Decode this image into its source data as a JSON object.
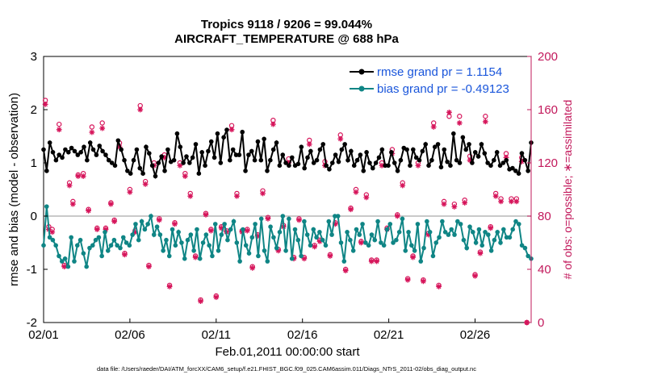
{
  "chart_data": {
    "type": "line",
    "title": "Tropics 9118 / 9206 = 99.044%",
    "subtitle": "AIRCRAFT_TEMPERATURE @ 688 hPa",
    "xlabel": "Feb.01,2011 00:00:00 start",
    "ylabel_left": "rmse and bias (model - observation)",
    "ylabel_right": "# of obs: o=possible; ∗=assimilated",
    "ylim_left": [
      -2,
      3
    ],
    "ylim_right": [
      0,
      200
    ],
    "yticks_left": [
      "-2",
      "-1",
      "0",
      "1",
      "2",
      "3"
    ],
    "yticks_right": [
      "0",
      "40",
      "80",
      "120",
      "160",
      "200"
    ],
    "xticks": [
      "02/01",
      "02/06",
      "02/11",
      "02/16",
      "02/21",
      "02/26"
    ],
    "xlim_days": [
      0,
      28.25
    ],
    "footnote": "data file: /Users/raeder/DAI/ATM_forcXX/CAM6_setup/f.e21.FHIST_BGC.f09_025.CAM6assim.011/Diags_NTrS_2011-02/obs_diag_output.nc",
    "series": [
      {
        "name": "rmse grand pr = 1.1154",
        "color": "#000000",
        "axis": "left",
        "values": [
          1.25,
          0.85,
          1.38,
          1.2,
          1.05,
          1.15,
          1.1,
          1.25,
          1.2,
          1.28,
          1.22,
          1.15,
          1.2,
          1.3,
          1.05,
          1.38,
          1.25,
          1.15,
          1.32,
          1.22,
          1.15,
          1.05,
          1.0,
          0.95,
          1.42,
          1.25,
          1.05,
          0.85,
          0.8,
          1.05,
          1.25,
          0.9,
          0.8,
          1.3,
          1.18,
          0.95,
          0.75,
          1.0,
          1.12,
          0.85,
          1.25,
          1.02,
          1.05,
          1.55,
          1.3,
          1.0,
          1.12,
          1.0,
          1.1,
          1.35,
          0.8,
          1.2,
          0.95,
          1.22,
          1.4,
          1.1,
          1.55,
          1.0,
          1.48,
          1.62,
          1.05,
          1.25,
          1.15,
          1.15,
          1.58,
          0.85,
          1.15,
          1.22,
          1.05,
          1.4,
          1.05,
          1.45,
          0.85,
          1.05,
          1.25,
          1.38,
          0.95,
          1.15,
          1.0,
          0.95,
          1.1,
          0.95,
          0.98,
          1.3,
          0.9,
          1.1,
          1.22,
          1.0,
          1.05,
          1.25,
          1.35,
          0.95,
          0.88,
          1.0,
          1.15,
          1.02,
          1.25,
          1.35,
          1.05,
          1.22,
          0.95,
          1.05,
          1.15,
          0.85,
          1.2,
          1.0,
          0.9,
          1.0,
          1.1,
          1.25,
          0.95,
          0.95,
          1.2,
          1.0,
          0.85,
          1.05,
          1.28,
          1.25,
          0.95,
          1.25,
          1.1,
          1.05,
          1.22,
          1.35,
          0.95,
          1.05,
          1.3,
          1.35,
          0.92,
          1.25,
          1.02,
          0.95,
          1.55,
          1.05,
          1.0,
          1.48,
          1.25,
          1.35,
          1.0,
          1.2,
          1.12,
          1.35,
          1.18,
          1.0,
          0.95,
          1.05,
          1.2,
          0.95,
          1.0,
          1.05,
          0.88,
          0.9,
          0.85,
          0.8,
          1.18,
          1.05,
          0.85,
          1.38
        ]
      },
      {
        "name": "bias grand pr = -0.49123",
        "color": "#0f8585",
        "axis": "left",
        "values": [
          -0.55,
          0.18,
          -0.4,
          -0.45,
          -0.55,
          -0.75,
          -0.85,
          -0.8,
          -0.95,
          -0.4,
          -0.85,
          -0.55,
          -0.45,
          -0.7,
          -0.95,
          -0.6,
          -0.55,
          -0.45,
          -0.4,
          -0.75,
          -0.3,
          -0.65,
          -0.55,
          -0.45,
          -0.55,
          -0.6,
          -0.4,
          -0.5,
          -0.55,
          -0.35,
          -0.15,
          -0.45,
          -0.1,
          -0.25,
          -0.15,
          0.0,
          -0.35,
          -0.2,
          -0.35,
          -0.65,
          -0.45,
          -0.75,
          -0.25,
          -0.55,
          -0.3,
          -0.5,
          -0.8,
          -0.45,
          -0.35,
          -0.65,
          -0.25,
          -0.8,
          -0.5,
          -0.35,
          -0.55,
          -0.75,
          -0.15,
          -0.65,
          -0.35,
          -0.15,
          -0.45,
          -0.25,
          -0.1,
          -0.5,
          -0.85,
          -0.25,
          -0.55,
          -0.7,
          -0.4,
          -0.15,
          -0.75,
          -0.05,
          -0.65,
          -0.85,
          -0.2,
          -0.4,
          -0.6,
          -0.3,
          0.0,
          -0.65,
          -0.05,
          -0.8,
          -0.25,
          -0.45,
          -0.75,
          -0.1,
          -0.35,
          -0.55,
          -0.25,
          -0.4,
          -0.3,
          -0.45,
          -0.55,
          -0.1,
          -0.35,
          0.0,
          0.0,
          -0.5,
          -0.85,
          -0.3,
          -0.45,
          -0.65,
          -0.25,
          -0.35,
          -0.15,
          -0.5,
          -0.55,
          -0.35,
          -0.45,
          -0.1,
          -0.5,
          -0.55,
          -0.25,
          -0.15,
          -0.5,
          -0.45,
          -0.3,
          -0.05,
          -0.65,
          -0.3,
          -0.55,
          -0.65,
          -0.15,
          -0.85,
          -0.6,
          -0.1,
          -0.3,
          -0.75,
          -0.5,
          -0.4,
          -0.1,
          -0.3,
          -0.35,
          -0.25,
          -0.35,
          -0.1,
          -0.15,
          -0.45,
          -0.6,
          -0.2,
          -0.3,
          -0.5,
          -0.25,
          -0.55,
          -0.3,
          -0.35,
          -0.65,
          -0.45,
          -0.3,
          -0.5,
          -0.25,
          -0.4,
          -0.4,
          -0.25,
          -0.1,
          -0.15,
          -0.55,
          -0.6,
          -0.75,
          -0.8
        ]
      },
      {
        "name": "possible",
        "color": "#d6145a",
        "axis": "right",
        "marker": "o",
        "x": [
          0.1,
          0.3,
          0.5,
          0.9,
          1.2,
          1.5,
          1.7,
          2.0,
          2.3,
          2.6,
          2.8,
          3.1,
          3.4,
          3.6,
          3.9,
          4.1,
          4.4,
          4.7,
          5.0,
          5.3,
          5.6,
          5.9,
          6.1,
          6.4,
          6.7,
          7.0,
          7.3,
          7.6,
          7.9,
          8.2,
          8.5,
          8.8,
          9.1,
          9.4,
          9.7,
          10.0,
          10.3,
          10.6,
          10.9,
          11.2,
          11.5,
          11.8,
          12.1,
          12.4,
          12.7,
          13.0,
          13.3,
          13.6,
          13.9,
          14.2,
          14.5,
          14.8,
          15.1,
          15.4,
          15.7,
          16.0,
          16.3,
          16.6,
          16.9,
          17.2,
          17.5,
          17.8,
          18.1,
          18.4,
          18.7,
          19.0,
          19.3,
          19.6,
          19.9,
          20.2,
          20.5,
          20.8,
          21.1,
          21.4,
          21.7,
          22.0,
          22.3,
          22.6,
          22.9,
          23.2,
          23.5,
          23.8,
          24.1,
          24.4,
          24.7,
          25.0,
          25.3,
          25.6,
          25.9,
          26.2,
          26.5,
          26.8,
          27.1,
          27.4,
          27.7,
          28.0
        ],
        "values": [
          167,
          72,
          70,
          149,
          43,
          105,
          91,
          111,
          112,
          85,
          147,
          71,
          150,
          71,
          90,
          77,
          135,
          52,
          100,
          69,
          163,
          106,
          43,
          120,
          78,
          126,
          28,
          75,
          120,
          112,
          97,
          50,
          17,
          82,
          70,
          20,
          72,
          69,
          148,
          97,
          69,
          70,
          42,
          66,
          99,
          79,
          152,
          55,
          73,
          123,
          49,
          78,
          49,
          137,
          58,
          62,
          121,
          51,
          75,
          141,
          40,
          86,
          100,
          61,
          96,
          47,
          47,
          120,
          71,
          130,
          81,
          105,
          33,
          50,
          120,
          32,
          67,
          150,
          28,
          91,
          155,
          89,
          155,
          92,
          125,
          36,
          53,
          155,
          72,
          97,
          93,
          127,
          93,
          93,
          124,
          0
        ]
      },
      {
        "name": "assimilated",
        "color": "#d6145a",
        "axis": "right",
        "marker": "*",
        "x": [
          0.1,
          0.3,
          0.5,
          0.9,
          1.2,
          1.5,
          1.7,
          2.0,
          2.3,
          2.6,
          2.8,
          3.1,
          3.4,
          3.6,
          3.9,
          4.1,
          4.4,
          4.7,
          5.0,
          5.3,
          5.6,
          5.9,
          6.1,
          6.4,
          6.7,
          7.0,
          7.3,
          7.6,
          7.9,
          8.2,
          8.5,
          8.8,
          9.1,
          9.4,
          9.7,
          10.0,
          10.3,
          10.6,
          10.9,
          11.2,
          11.5,
          11.8,
          12.1,
          12.4,
          12.7,
          13.0,
          13.3,
          13.6,
          13.9,
          14.2,
          14.5,
          14.8,
          15.1,
          15.4,
          15.7,
          16.0,
          16.3,
          16.6,
          16.9,
          17.2,
          17.5,
          17.8,
          18.1,
          18.4,
          18.7,
          19.0,
          19.3,
          19.6,
          19.9,
          20.2,
          20.5,
          20.8,
          21.1,
          21.4,
          21.7,
          22.0,
          22.3,
          22.6,
          22.9,
          23.2,
          23.5,
          23.8,
          24.1,
          24.4,
          24.7,
          25.0,
          25.3,
          25.6,
          25.9,
          26.2,
          26.5,
          26.8,
          27.1,
          27.4,
          27.7,
          28.0
        ],
        "values": [
          164,
          70,
          68,
          145,
          42,
          103,
          89,
          110,
          110,
          84,
          143,
          70,
          146,
          70,
          89,
          76,
          132,
          51,
          98,
          68,
          160,
          104,
          42,
          118,
          77,
          124,
          27,
          74,
          118,
          110,
          95,
          49,
          16,
          81,
          69,
          19,
          71,
          68,
          145,
          95,
          68,
          69,
          41,
          65,
          97,
          78,
          149,
          54,
          72,
          120,
          48,
          77,
          48,
          134,
          57,
          61,
          118,
          50,
          74,
          138,
          39,
          85,
          98,
          60,
          94,
          46,
          46,
          118,
          70,
          127,
          80,
          103,
          32,
          49,
          118,
          31,
          66,
          147,
          27,
          89,
          158,
          87,
          150,
          90,
          122,
          35,
          52,
          151,
          71,
          95,
          91,
          124,
          91,
          91,
          121,
          0
        ]
      }
    ],
    "legend": {
      "placement": "top-right"
    },
    "zero_line": true
  }
}
